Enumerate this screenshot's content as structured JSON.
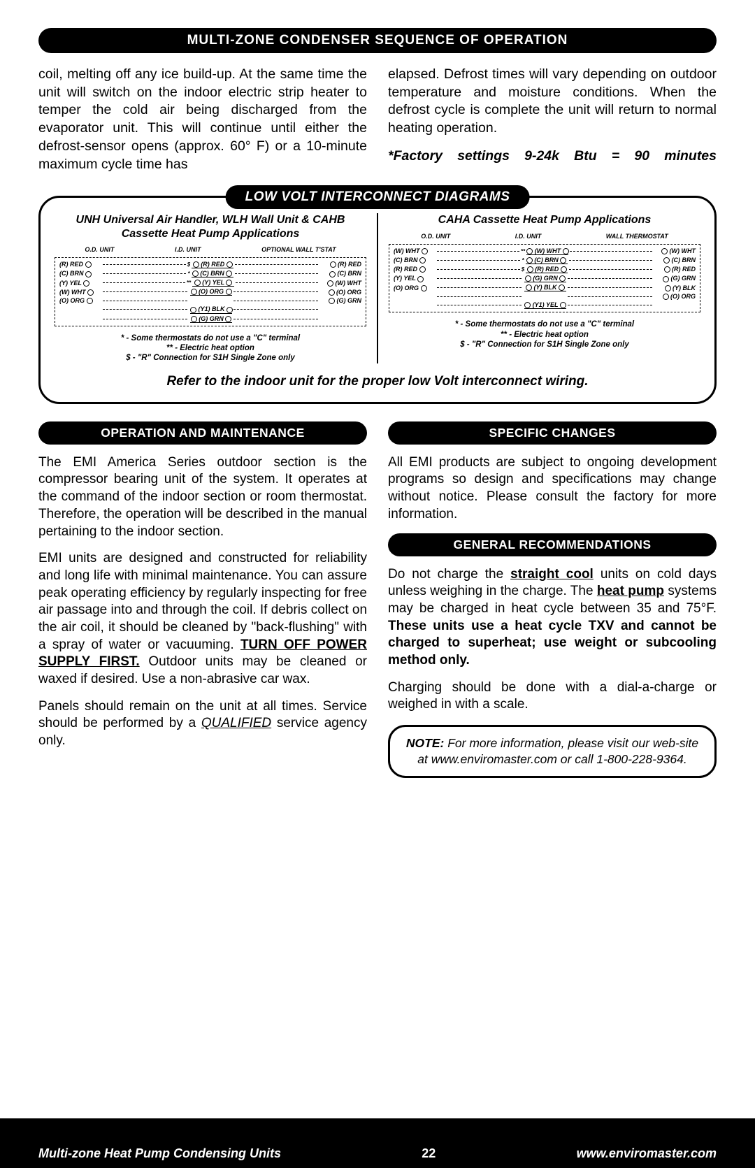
{
  "header": "MULTI-ZONE CONDENSER SEQUENCE OF OPERATION",
  "left_para": "coil, melting off any ice build-up. At the same time the unit will switch on the indoor electric strip heater to temper the cold air being discharged from the evaporator unit. This will continue until either the defrost-sensor opens (approx. 60° F) or a 10-minute maximum cycle time has",
  "right_para": "elapsed. Defrost times will vary depending on outdoor temperature and moisture conditions. When the defrost cycle is complete the unit will return to normal heating operation.",
  "factory": "*Factory settings 9-24k Btu = 90 minutes",
  "diagram_header": "LOW VOLT INTERCONNECT DIAGRAMS",
  "d1_title": "UNH Universal Air Handler, WLH Wall Unit & CAHB Cassette Heat Pump Applications",
  "d2_title": "CAHA Cassette Heat Pump Applications",
  "units1": [
    "O.D. UNIT",
    "I.D. UNIT",
    "OPTIONAL WALL T'STAT"
  ],
  "units2": [
    "O.D. UNIT",
    "I.D. UNIT",
    "WALL THERMOSTAT"
  ],
  "wires1": [
    {
      "l": "(R) RED",
      "m": "(R) RED",
      "r": "(R) RED",
      "sym": "$"
    },
    {
      "l": "(C) BRN",
      "m": "(C) BRN",
      "r": "(C) BRN",
      "sym": "*"
    },
    {
      "l": "(Y) YEL",
      "m": "(Y) YEL",
      "r": "(W) WHT",
      "sym": "**"
    },
    {
      "l": "(W) WHT",
      "m": "(O) ORG",
      "r": "(O) ORG",
      "sym": ""
    },
    {
      "l": "(O) ORG",
      "m": "",
      "r": "(G) GRN",
      "sym": ""
    },
    {
      "l": "",
      "m": "(Y1) BLK",
      "r": "",
      "sym": ""
    },
    {
      "l": "",
      "m": "(G) GRN",
      "r": "",
      "sym": ""
    }
  ],
  "wires2": [
    {
      "l": "(W) WHT",
      "m": "(W) WHT",
      "r": "(W) WHT",
      "sym": "**"
    },
    {
      "l": "(C) BRN",
      "m": "(C) BRN",
      "r": "(C) BRN",
      "sym": "*"
    },
    {
      "l": "(R) RED",
      "m": "(R) RED",
      "r": "(R) RED",
      "sym": "$"
    },
    {
      "l": "(Y) YEL",
      "m": "(G) GRN",
      "r": "(G) GRN",
      "sym": ""
    },
    {
      "l": "(O) ORG",
      "m": "(Y) BLK",
      "r": "(Y) BLK",
      "sym": ""
    },
    {
      "l": "",
      "m": "",
      "r": "(O) ORG",
      "sym": ""
    },
    {
      "l": "",
      "m": "(Y1) YEL",
      "r": "",
      "sym": ""
    }
  ],
  "notes1": "* - Some thermostats do not use a \"C\" terminal",
  "notes2": "** - Electric heat option",
  "notes3": "$ - \"R\" Connection for S1H Single Zone only",
  "refer": "Refer to the indoor unit for the proper low Volt interconnect wiring.",
  "op_header": "OPERATION AND MAINTENANCE",
  "op_p1": "The EMI America Series outdoor section is the compressor bearing unit of the system. It operates at the command of the  indoor section or room thermostat. Therefore, the operation will be described in the manual pertaining to the indoor section.",
  "op_p2a": "EMI units are designed and constructed for reliability and long life with minimal maintenance. You can assure peak operating efficiency by regularly inspecting for free air passage into and through the coil. If debris collect on the air coil, it should be cleaned by \"back-flushing\" with a spray of water or vacuuming. ",
  "op_p2b": "TURN OFF POWER SUPPLY FIRST.",
  "op_p2c": " Outdoor units may be cleaned or waxed if desired.  Use a non-abrasive car wax.",
  "op_p3a": "Panels should remain on the unit at all times. Service should be performed by a ",
  "op_p3b": "QUALIFIED",
  "op_p3c": " service agency only.",
  "spec_header": "SPECIFIC CHANGES",
  "spec_p": "All EMI products are subject to ongoing development programs so design and specifications may change without notice. Please consult the factory for more information.",
  "gen_header": "GENERAL RECOMMENDATIONS",
  "gen_p1a": "Do not charge the ",
  "gen_p1b": "straight cool",
  "gen_p1c": " units on cold days unless weighing in the charge. The ",
  "gen_p1d": "heat pump",
  "gen_p1e": " systems may be charged in heat cycle between 35 and 75°F. ",
  "gen_p1f": "These units use a heat cycle TXV and cannot be charged to superheat; use weight or subcooling method only.",
  "gen_p2": "Charging should be done with a dial-a-charge or weighed in with a scale.",
  "note_a": "NOTE:",
  "note_b": " For more information, please visit our web-site at www.enviromaster.com or call 1-800-228-9364.",
  "footer_left": "Multi-zone Heat Pump Condensing Units",
  "footer_page": "22",
  "footer_right": "www.enviromaster.com"
}
